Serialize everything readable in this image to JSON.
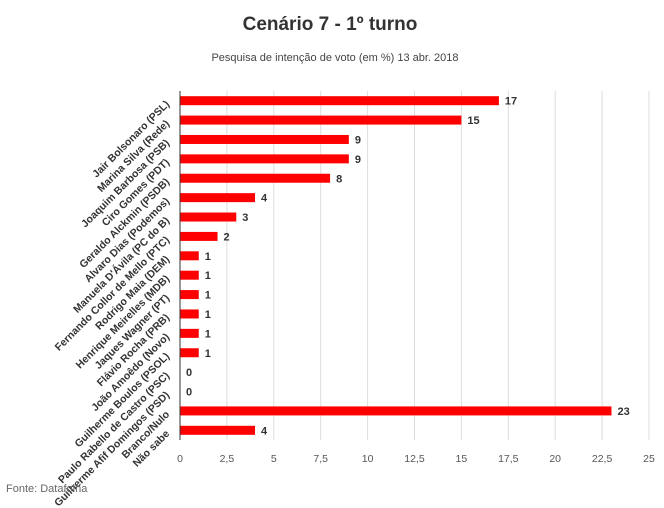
{
  "chart_data": {
    "type": "bar",
    "orientation": "horizontal",
    "title": "Cenário 7 - 1º turno",
    "subtitle": "Pesquisa de intenção de voto (em %) 13 abr. 2018",
    "source": "Fonte: Datafolha",
    "categories": [
      "Jair Bolsonaro (PSL)",
      "Marina Silva (Rede)",
      "Joaquim Barbosa (PSB)",
      "Ciro Gomes (PDT)",
      "Geraldo Alckmin (PSDB)",
      "Alvaro Dias (Podemos)",
      "Manuela D'Ávila (PC do B)",
      "Fernando Collor de Mello (PTC)",
      "Rodrigo Maia (DEM)",
      "Henrique Meirelles (MDB)",
      "Jaques Wagner (PT)",
      "Flávio Rocha (PRB)",
      "João Amoêdo (Novo)",
      "Guilherme Boulos (PSOL)",
      "Paulo Rabello de Castro (PSC)",
      "Guilherme Afif Domingos (PSD)",
      "Branco/Nulo",
      "Não sabe"
    ],
    "values": [
      17,
      15,
      9,
      9,
      8,
      4,
      3,
      2,
      1,
      1,
      1,
      1,
      1,
      1,
      0,
      0,
      23,
      4
    ],
    "xlim": [
      0,
      25
    ],
    "xticks": [
      "0",
      "2,5",
      "5",
      "7,5",
      "10",
      "12,5",
      "15",
      "17,5",
      "20",
      "22,5",
      "25"
    ],
    "grid": true,
    "colors": {
      "bar": "#ff0000",
      "grid": "#dddddd",
      "axis": "#333333"
    }
  }
}
